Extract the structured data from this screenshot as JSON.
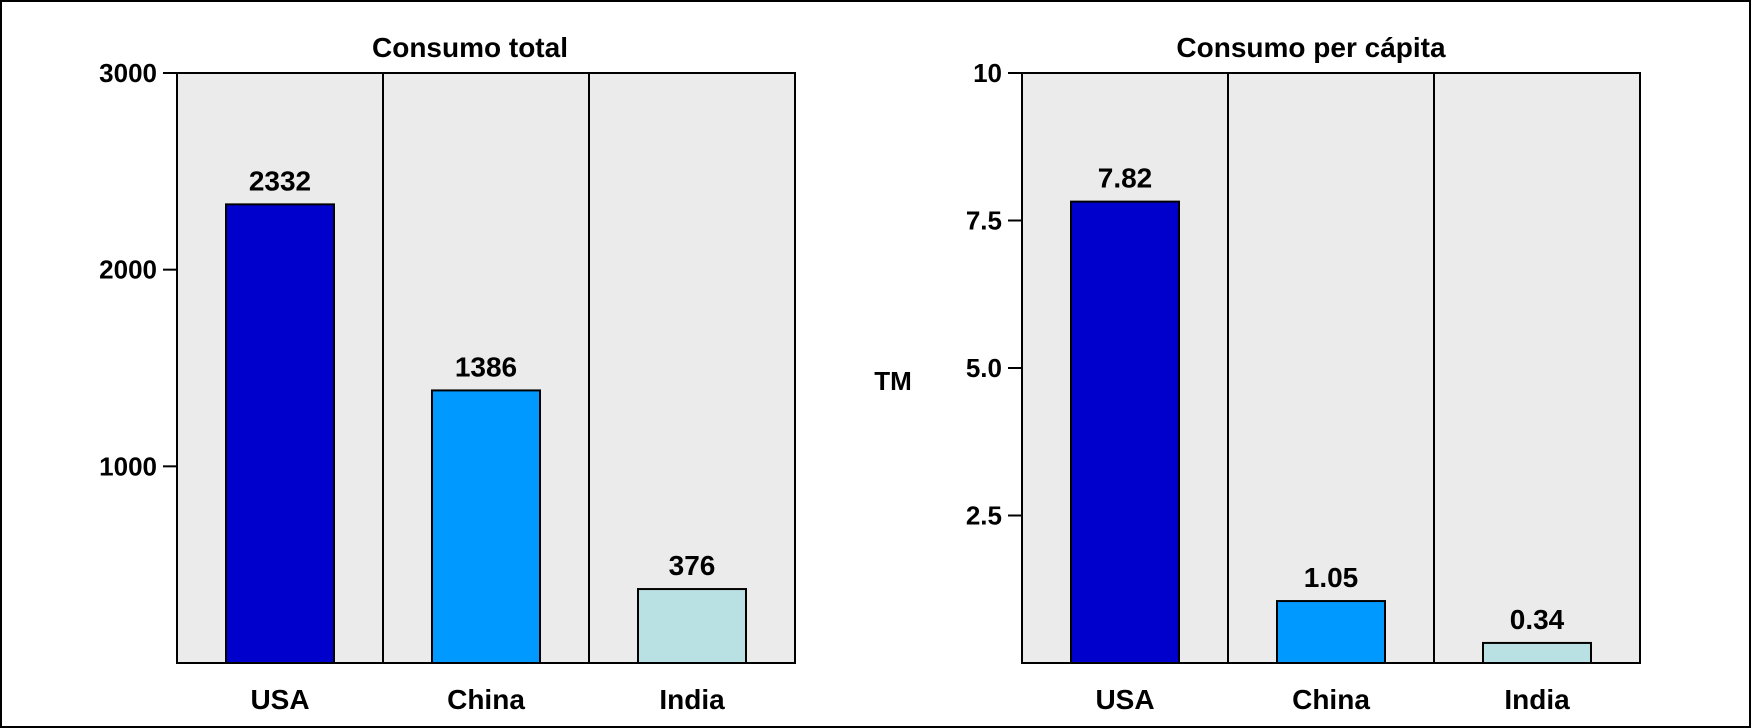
{
  "chart_data": [
    {
      "type": "bar",
      "title": "Consumo total",
      "categories": [
        "USA",
        "China",
        "India"
      ],
      "values": [
        2332,
        1386,
        376
      ],
      "data_labels": [
        "2332",
        "1386",
        "376"
      ],
      "ylim": [
        0,
        3000
      ],
      "yticks": [
        1000,
        2000,
        3000
      ],
      "ytick_labels": [
        "1000",
        "2000",
        "3000"
      ],
      "ylabel": "",
      "xlabel": "",
      "grid": false,
      "legend": "none",
      "colors": [
        "#0000cc",
        "#0099ff",
        "#b9e1e4"
      ]
    },
    {
      "type": "bar",
      "title": "Consumo per cápita",
      "categories": [
        "USA",
        "China",
        "India"
      ],
      "values": [
        7.82,
        1.05,
        0.34
      ],
      "data_labels": [
        "7.82",
        "1.05",
        "0.34"
      ],
      "ylim": [
        0,
        10
      ],
      "yticks": [
        2.5,
        5.0,
        7.5,
        10
      ],
      "ytick_labels": [
        "2.5",
        "5.0",
        "7.5",
        "10"
      ],
      "ylabel": "TM",
      "xlabel": "",
      "grid": false,
      "legend": "none",
      "colors": [
        "#0000cc",
        "#0099ff",
        "#b9e1e4"
      ]
    }
  ],
  "style": {
    "plot_background": "#ebebeb",
    "frame_color": "#000000"
  }
}
